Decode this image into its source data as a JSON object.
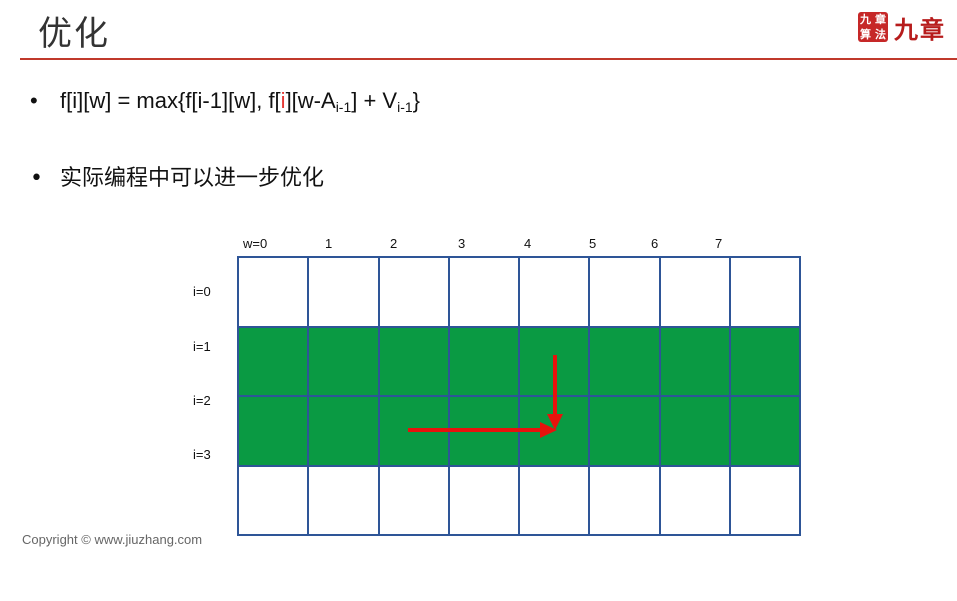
{
  "title": "优化",
  "logo": {
    "seal_chars": [
      "九",
      "章",
      "算",
      "法"
    ],
    "text": "九章"
  },
  "bullets": {
    "dot": "•",
    "formula": {
      "p1": "f[i][w] = max{f[i-1][w], f[",
      "highlight": "i",
      "p2": "][w-A",
      "sub1": "i-1",
      "p3": "] + V",
      "sub2": "i-1",
      "p4": "}"
    },
    "text2": "实际编程中可以进一步优化"
  },
  "table": {
    "column_labels": [
      "w=0",
      "1",
      "2",
      "3",
      "4",
      "5",
      "6",
      "7"
    ],
    "row_labels": [
      "i=0",
      "i=1",
      "i=2",
      "i=3"
    ],
    "highlight_rows": [
      1,
      2
    ],
    "highlight_color": "#0a9a43",
    "border_color": "#2e5597",
    "arrow_color": "#e8120c"
  },
  "footer": {
    "copyright": "Copyright © www.jiuzhang.com"
  }
}
